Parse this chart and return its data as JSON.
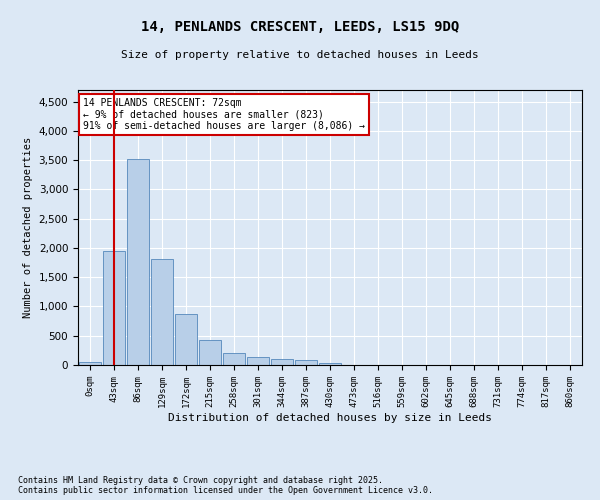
{
  "title_line1": "14, PENLANDS CRESCENT, LEEDS, LS15 9DQ",
  "title_line2": "Size of property relative to detached houses in Leeds",
  "xlabel": "Distribution of detached houses by size in Leeds",
  "ylabel": "Number of detached properties",
  "bar_labels": [
    "0sqm",
    "43sqm",
    "86sqm",
    "129sqm",
    "172sqm",
    "215sqm",
    "258sqm",
    "301sqm",
    "344sqm",
    "387sqm",
    "430sqm",
    "473sqm",
    "516sqm",
    "559sqm",
    "602sqm",
    "645sqm",
    "688sqm",
    "731sqm",
    "774sqm",
    "817sqm",
    "860sqm"
  ],
  "bar_heights": [
    50,
    1950,
    3520,
    1820,
    870,
    430,
    200,
    130,
    110,
    90,
    40,
    5,
    0,
    0,
    0,
    0,
    0,
    0,
    0,
    0,
    0
  ],
  "bar_color": "#b8cfe8",
  "bar_edge_color": "#5588bb",
  "ylim": [
    0,
    4700
  ],
  "yticks": [
    0,
    500,
    1000,
    1500,
    2000,
    2500,
    3000,
    3500,
    4000,
    4500
  ],
  "vline_x": 1.0,
  "vline_color": "#cc0000",
  "annotation_text": "14 PENLANDS CRESCENT: 72sqm\n← 9% of detached houses are smaller (823)\n91% of semi-detached houses are larger (8,086) →",
  "annotation_box_color": "#ffffff",
  "annotation_box_edge": "#cc0000",
  "footnote": "Contains HM Land Registry data © Crown copyright and database right 2025.\nContains public sector information licensed under the Open Government Licence v3.0.",
  "bg_color": "#dce8f5",
  "plot_bg_color": "#dce8f5",
  "grid_color": "#ffffff"
}
